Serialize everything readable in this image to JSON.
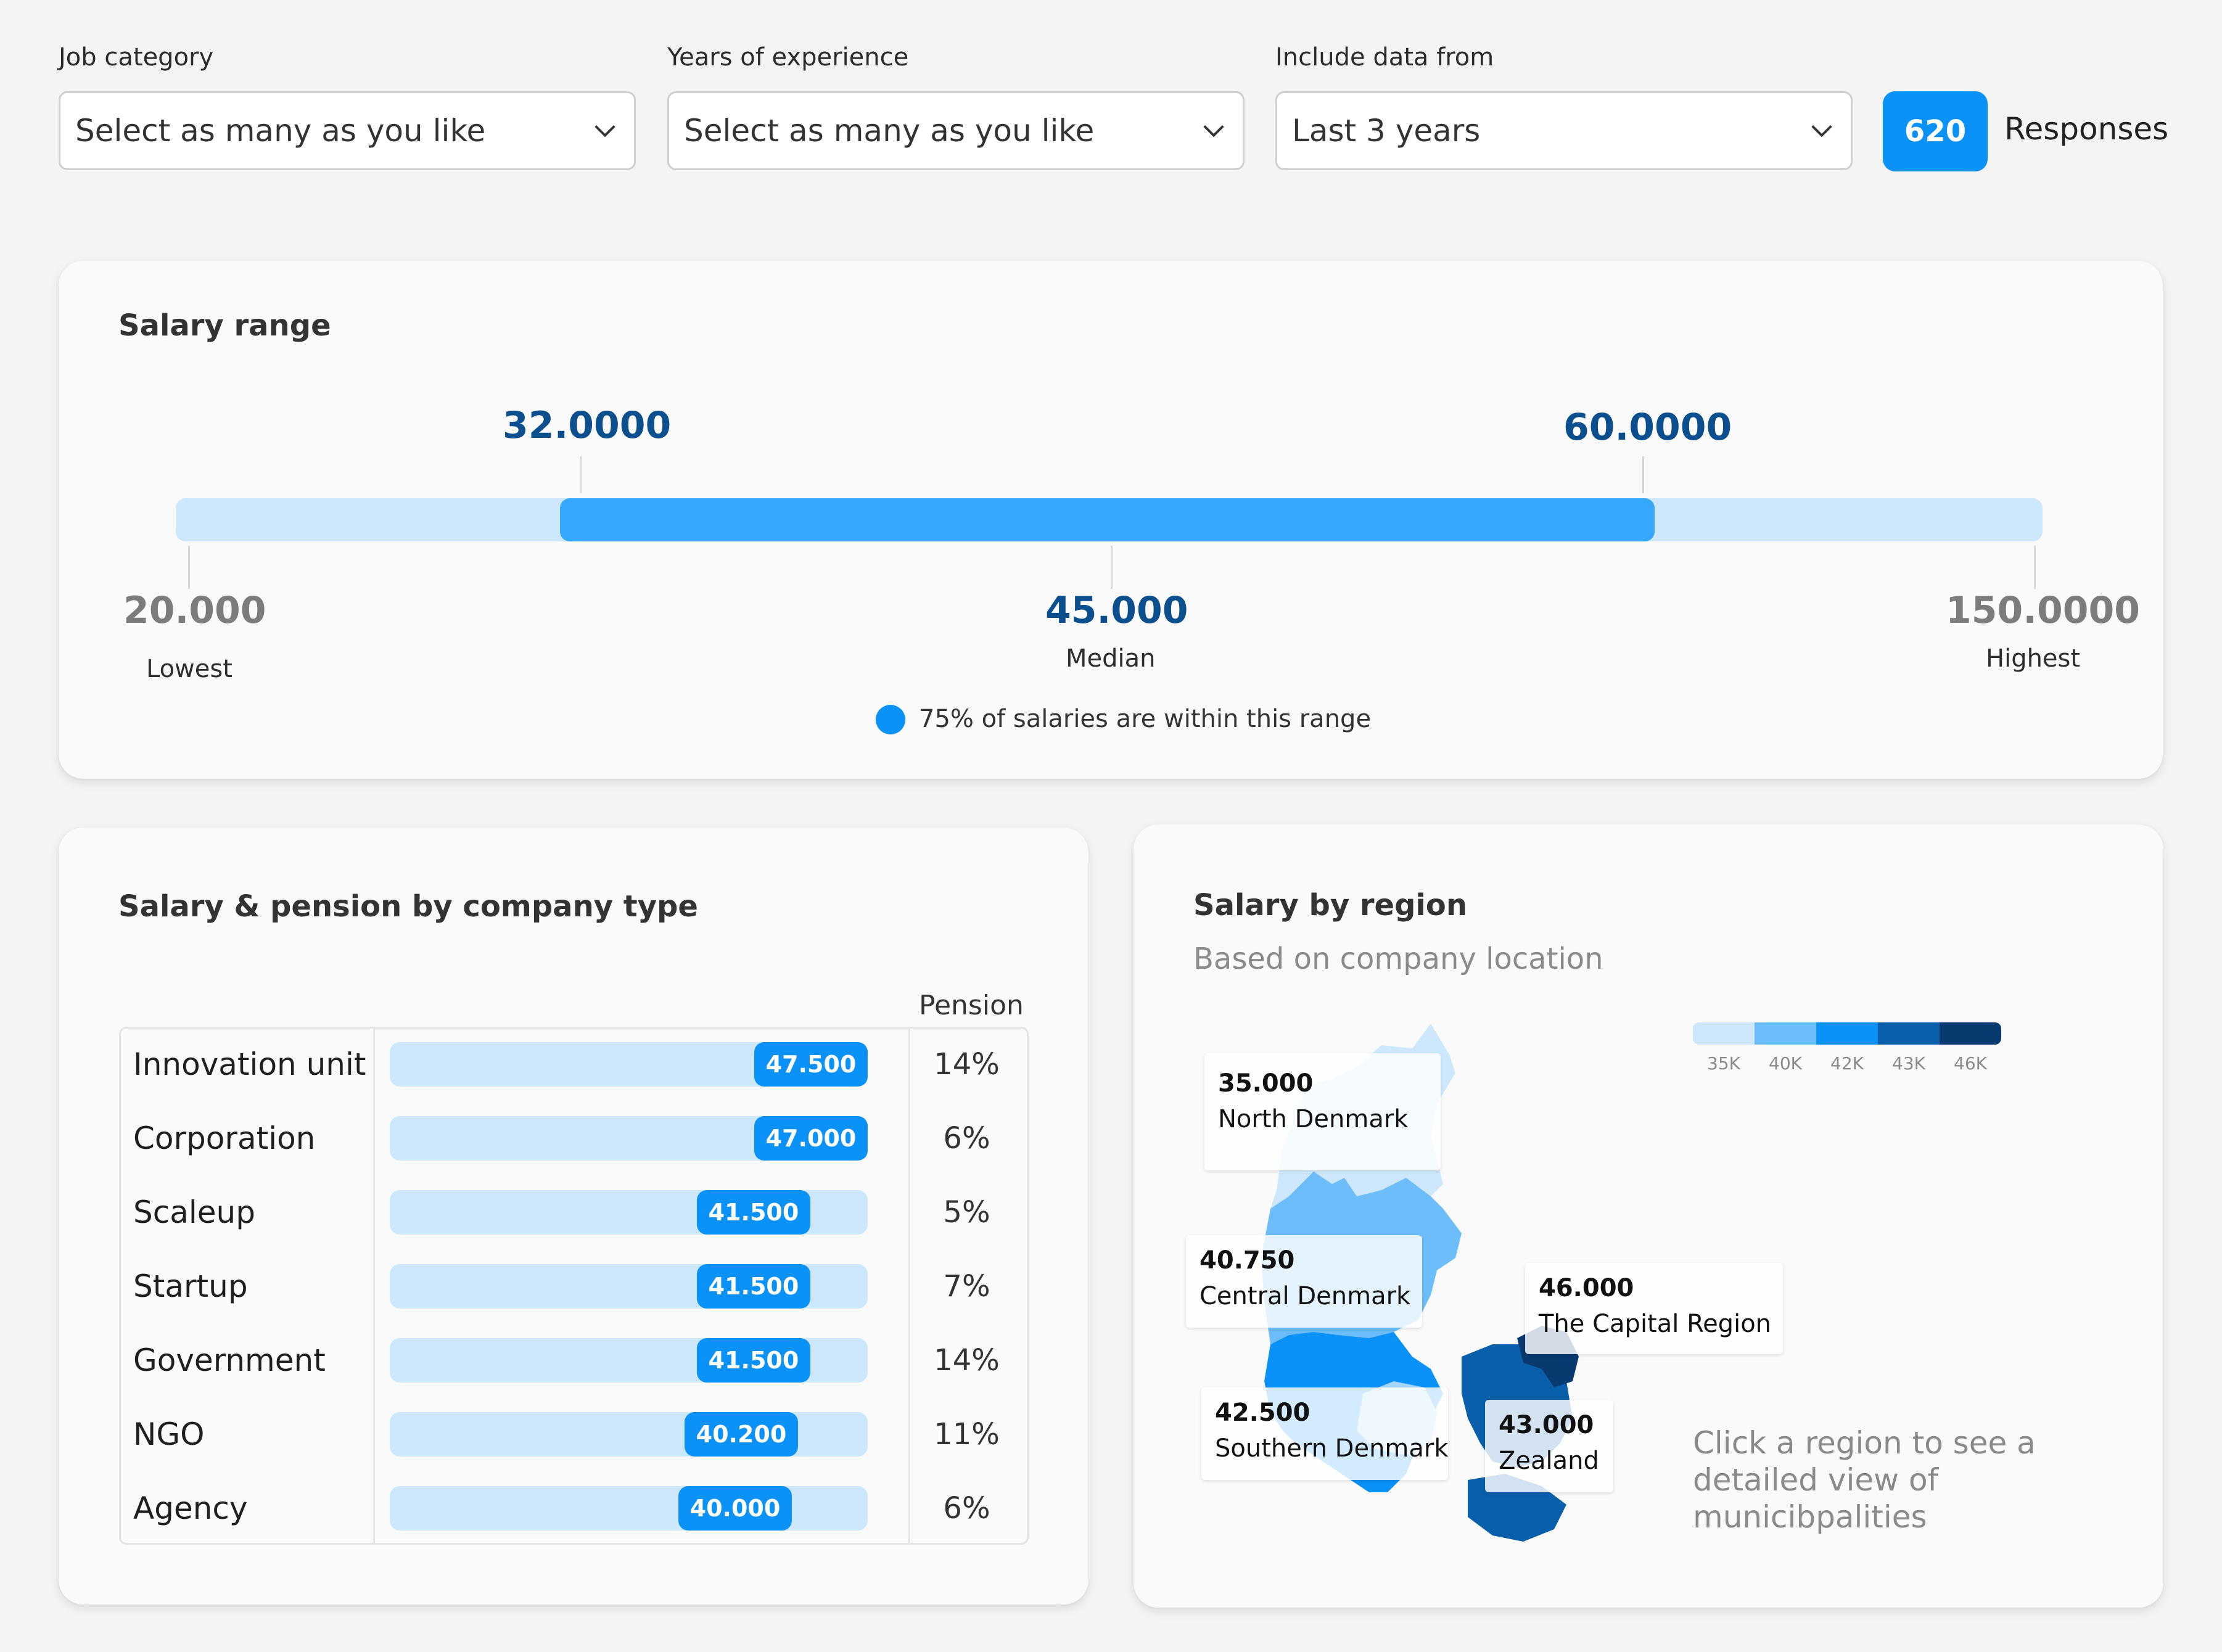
{
  "filters": {
    "job_category": {
      "label": "Job category",
      "value": "Select as many as you like"
    },
    "experience": {
      "label": "Years of experience",
      "value": "Select as many as you like"
    },
    "data_from": {
      "label": "Include data from",
      "value": "Last 3 years"
    },
    "responses_count": "620",
    "responses_label": "Responses"
  },
  "salary_range": {
    "title": "Salary range",
    "low_quartile": "32.0000",
    "high_quartile": "60.0000",
    "lowest": "20.000",
    "lowest_label": "Lowest",
    "median": "45.000",
    "median_label": "Median",
    "highest": "150.0000",
    "highest_label": "Highest",
    "legend": "75% of salaries are within this range",
    "colors": {
      "track": "#cde8fd",
      "range": "#36a8fc",
      "value": "#0b4f8f"
    }
  },
  "company": {
    "title": "Salary & pension by company type",
    "pension_header": "Pension",
    "rows": [
      {
        "name": "Innovation unit",
        "salary": "47.500",
        "pension": "14%"
      },
      {
        "name": "Corporation",
        "salary": "47.000",
        "pension": "6%"
      },
      {
        "name": "Scaleup",
        "salary": "41.500",
        "pension": "5%"
      },
      {
        "name": "Startup",
        "salary": "41.500",
        "pension": "7%"
      },
      {
        "name": "Government",
        "salary": "41.500",
        "pension": "14%"
      },
      {
        "name": "NGO",
        "salary": "40.200",
        "pension": "11%"
      },
      {
        "name": "Agency",
        "salary": "40.000",
        "pension": "6%"
      }
    ]
  },
  "region": {
    "title": "Salary by region",
    "subtitle": "Based on company location",
    "legend": {
      "labels": [
        "35K",
        "40K",
        "42K",
        "43K",
        "46K"
      ],
      "colors": [
        "#cde8fd",
        "#6cbdf9",
        "#0a92f8",
        "#0a5fac",
        "#083a70"
      ]
    },
    "regions": [
      {
        "salary": "35.000",
        "name": "North Denmark"
      },
      {
        "salary": "40.750",
        "name": "Central Denmark"
      },
      {
        "salary": "46.000",
        "name": "The Capital Region"
      },
      {
        "salary": "42.500",
        "name": "Southern Denmark"
      },
      {
        "salary": "43.000",
        "name": "Zealand"
      }
    ],
    "hint": "Click a region to see a detailed view of municibpalities"
  }
}
